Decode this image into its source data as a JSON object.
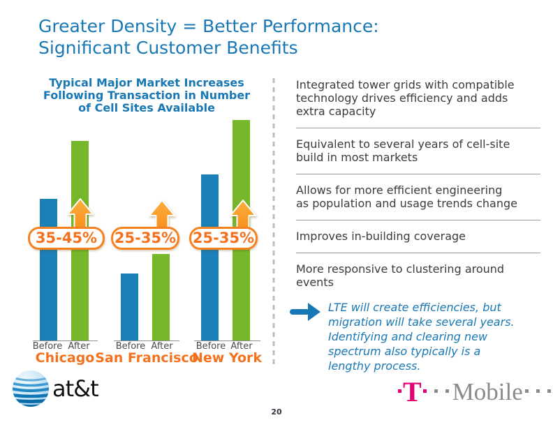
{
  "slide": {
    "title": {
      "line1": "Greater Density = Better Performance:",
      "line2": "Significant Customer Benefits"
    },
    "page_number": "20"
  },
  "chart": {
    "title": {
      "line1": "Typical Major Market Increases",
      "line2": "Following Transaction in Number",
      "line3": "of Cell Sites Available"
    },
    "groups": [
      {
        "city": "Chicago",
        "badge": "35-45%",
        "before": "Before",
        "after": "After"
      },
      {
        "city": "San Francisco",
        "badge": "25-35%",
        "before": "Before",
        "after": "After"
      },
      {
        "city": "New York",
        "badge": "25-35%",
        "before": "Before",
        "after": "After"
      }
    ]
  },
  "chart_data": {
    "type": "bar",
    "title": "Typical Major Market Increases Following Transaction in Number of Cell Sites Available",
    "categories": [
      "Chicago",
      "San Francisco",
      "New York"
    ],
    "series": [
      {
        "name": "Before",
        "values": [
          203,
          96,
          238
        ]
      },
      {
        "name": "After",
        "values": [
          286,
          124,
          316
        ]
      }
    ],
    "units": "relative bar height in px (no y-axis shown on slide)",
    "annotations": [
      "35-45%",
      "25-35%",
      "25-35%"
    ],
    "xlabel": "",
    "ylabel": "",
    "legend": "none (Before/After labeled under each bar)",
    "grid": false,
    "colors": {
      "Before": "#1B7FB8",
      "After": "#76B82A"
    }
  },
  "benefits": {
    "items": [
      {
        "lines": [
          "Integrated tower grids with compatible",
          "technology drives efficiency and adds",
          "extra capacity"
        ]
      },
      {
        "lines": [
          "Equivalent to several years of cell-site",
          "build in most markets"
        ]
      },
      {
        "lines": [
          "Allows for more efficient engineering",
          "as population and usage trends change"
        ]
      },
      {
        "lines": [
          "Improves in-building coverage"
        ]
      },
      {
        "lines": [
          "More responsive to clustering around",
          "events"
        ]
      }
    ]
  },
  "callout": {
    "lines": [
      "LTE will create efficiencies, but",
      "migration will take several years.",
      "Identifying and clearing new",
      "spectrum also typically is a",
      "lengthy process."
    ]
  },
  "footer": {
    "att_text": "at&t",
    "tmobile_t": "T",
    "tmobile_mobile": "Mobile"
  },
  "icons": {
    "increase_arrow": "up-arrow",
    "callout_arrow": "right-arrow",
    "att_globe": "striped-globe",
    "tmobile_dots": "square-dots"
  },
  "colors": {
    "title_blue": "#1878B5",
    "bar_blue": "#1B7FB8",
    "bar_green": "#76B82A",
    "orange": "#F4721D",
    "tmobile_magenta": "#E20074",
    "body_text": "#3B3B3B",
    "divider_gray": "#9A9A9A"
  }
}
